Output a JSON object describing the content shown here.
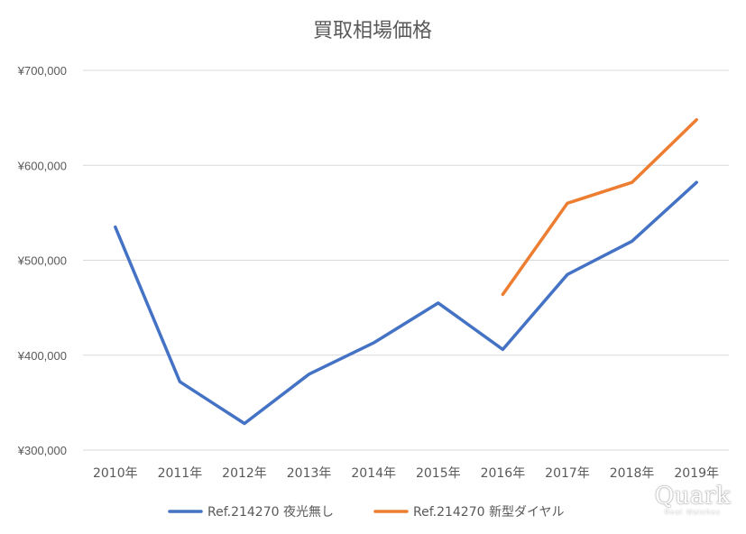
{
  "chart_data": {
    "type": "line",
    "title": "買取相場価格",
    "categories": [
      "2010年",
      "2011年",
      "2012年",
      "2013年",
      "2014年",
      "2015年",
      "2016年",
      "2017年",
      "2018年",
      "2019年"
    ],
    "series": [
      {
        "name": "Ref.214270 夜光無し",
        "color": "#4472C4",
        "values": [
          535000,
          372000,
          328000,
          380000,
          413000,
          455000,
          406000,
          485000,
          520000,
          582000
        ]
      },
      {
        "name": "Ref.214270 新型ダイヤル",
        "color": "#ED7D31",
        "values": [
          null,
          null,
          null,
          null,
          null,
          null,
          464000,
          560000,
          582000,
          648000
        ]
      }
    ],
    "ylim": [
      300000,
      700000
    ],
    "yticks": [
      300000,
      400000,
      500000,
      600000,
      700000
    ],
    "ytick_labels": [
      "¥300,000",
      "¥400,000",
      "¥500,000",
      "¥600,000",
      "¥700,000"
    ],
    "grid": true,
    "legend_position": "bottom"
  },
  "watermark": {
    "text": "Quark",
    "subtext": "Real Watches"
  }
}
